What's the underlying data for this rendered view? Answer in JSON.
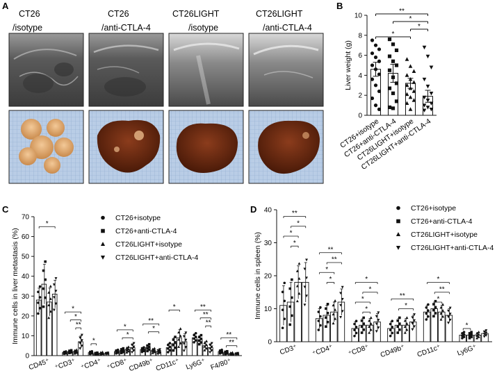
{
  "figure": {
    "panel_labels": [
      "A",
      "B",
      "C",
      "D"
    ],
    "groups": [
      {
        "line1": "CT26",
        "line2": "/isotype"
      },
      {
        "line1": "CT26",
        "line2": "/anti-CTLA-4"
      },
      {
        "line1": "CT26LIGHT",
        "line2": "/isotype"
      },
      {
        "line1": "CT26LIGHT",
        "line2": "/anti-CTLA-4"
      }
    ],
    "legend": [
      "CT26+isotype",
      "CT26+anti-CTLA-4",
      "CT26LIGHT+isotype",
      "CT26LIGHT+anti-CTLA-4"
    ],
    "colors": {
      "ink": "#111111",
      "ultrasound_bg": "#5a5a5a",
      "tissue_bg": "#b9cde6",
      "tumor_tissue": "#e0a868",
      "liver_tissue": "#6a2a12"
    }
  },
  "chart_data": [
    {
      "panel": "B",
      "type": "bar",
      "ylabel": "Liver weight (g)",
      "yticks": [
        0,
        2,
        4,
        6,
        8,
        10
      ],
      "ylim": [
        0,
        10
      ],
      "categories": [
        "CT26+isotype",
        "CT26+anti-CTLA-4",
        "CT26LIGHT+isotype",
        "CT26LIGHT+anti-CTLA-4"
      ],
      "values": [
        4.6,
        4.2,
        3.2,
        1.9
      ],
      "errors": [
        0.7,
        0.9,
        0.5,
        0.6
      ],
      "points": [
        [
          7.5,
          7.0,
          6.6,
          6.2,
          5.8,
          5.4,
          5.0,
          4.6,
          4.1,
          3.6,
          3.0,
          2.4,
          1.7,
          1.0,
          0.6
        ],
        [
          7.6,
          7.1,
          6.5,
          5.9,
          5.4,
          5.0,
          4.5,
          3.8,
          3.2,
          2.7,
          2.2,
          1.4,
          0.8,
          0.7
        ],
        [
          5.6,
          4.9,
          4.4,
          4.0,
          3.6,
          3.3,
          3.0,
          2.7,
          2.4,
          2.1,
          1.8,
          1.5,
          1.2,
          0.6
        ],
        [
          6.8,
          5.9,
          4.8,
          3.6,
          2.9,
          2.2,
          1.8,
          1.5,
          1.2,
          1.0,
          0.8,
          0.6,
          0.5
        ]
      ],
      "significance": [
        {
          "from": 0,
          "to": 3,
          "label": "**"
        },
        {
          "from": 1,
          "to": 3,
          "label": "*"
        },
        {
          "from": 2,
          "to": 3,
          "label": "*"
        },
        {
          "from": 0,
          "to": 2,
          "label": "*"
        }
      ]
    },
    {
      "panel": "C",
      "type": "bar",
      "ylabel": "Immune cells in liver metastasis (%)",
      "yticks": [
        0,
        10,
        20,
        30,
        40,
        50,
        60,
        70
      ],
      "ylim": [
        0,
        70
      ],
      "categories": [
        "CD45⁺",
        "⁺CD3⁺",
        "⁺CD4⁺",
        "⁺CD8⁺",
        "CD49b⁺",
        "CD11c⁺",
        "Ly6G⁺",
        "F4/80⁺"
      ],
      "series": [
        {
          "name": "CT26+isotype",
          "values": [
            28,
            1.5,
            1.5,
            2,
            3,
            4,
            9,
            2
          ],
          "errors": [
            6,
            0.5,
            0.6,
            0.8,
            1,
            2,
            2,
            0.8
          ]
        },
        {
          "name": "CT26+anti-CTLA-4",
          "values": [
            36,
            2,
            1,
            2.5,
            4,
            6,
            8,
            1.5
          ],
          "errors": [
            10,
            0.6,
            0.4,
            1,
            1.5,
            3,
            2,
            0.6
          ]
        },
        {
          "name": "CT26LIGHT+isotype",
          "values": [
            27,
            2,
            1.2,
            3,
            2.5,
            9,
            5,
            1
          ],
          "errors": [
            7,
            0.8,
            0.5,
            1.2,
            1,
            4,
            2,
            0.5
          ]
        },
        {
          "name": "CT26LIGHT+anti-CTLA-4",
          "values": [
            31,
            7,
            1,
            4,
            2,
            7,
            4,
            0.8
          ],
          "errors": [
            7,
            3,
            0.4,
            2,
            1,
            4,
            2,
            0.4
          ]
        }
      ],
      "significance": [
        {
          "cat": 0,
          "from": 0,
          "to": 3,
          "label": "*",
          "y": 65
        },
        {
          "cat": 1,
          "from": 0,
          "to": 3,
          "label": "*",
          "y": 22
        },
        {
          "cat": 1,
          "from": 1,
          "to": 3,
          "label": "*",
          "y": 18
        },
        {
          "cat": 1,
          "from": 2,
          "to": 3,
          "label": "**",
          "y": 14
        },
        {
          "cat": 2,
          "from": 0,
          "to": 1,
          "label": "*",
          "y": 6
        },
        {
          "cat": 3,
          "from": 0,
          "to": 3,
          "label": "*",
          "y": 13
        },
        {
          "cat": 3,
          "from": 1,
          "to": 3,
          "label": "*",
          "y": 9
        },
        {
          "cat": 4,
          "from": 0,
          "to": 3,
          "label": "**",
          "y": 16
        },
        {
          "cat": 4,
          "from": 1,
          "to": 3,
          "label": "*",
          "y": 12
        },
        {
          "cat": 5,
          "from": 0,
          "to": 2,
          "label": "*",
          "y": 23
        },
        {
          "cat": 6,
          "from": 0,
          "to": 3,
          "label": "**",
          "y": 23
        },
        {
          "cat": 6,
          "from": 1,
          "to": 3,
          "label": "**",
          "y": 19
        },
        {
          "cat": 6,
          "from": 2,
          "to": 3,
          "label": "**",
          "y": 15
        },
        {
          "cat": 7,
          "from": 0,
          "to": 3,
          "label": "**",
          "y": 9
        },
        {
          "cat": 7,
          "from": 1,
          "to": 3,
          "label": "**",
          "y": 5
        }
      ]
    },
    {
      "panel": "D",
      "type": "bar",
      "ylabel": "Immune cells in spleen (%)",
      "yticks": [
        0,
        10,
        20,
        30,
        40
      ],
      "ylim": [
        0,
        40
      ],
      "categories": [
        "CD3⁺",
        "⁺CD4⁺",
        "⁺CD8⁺",
        "CD49b⁺",
        "CD11c⁺",
        "Ly6G⁺"
      ],
      "series": [
        {
          "name": "CT26+isotype",
          "values": [
            11,
            7,
            4,
            4,
            9,
            2
          ],
          "errors": [
            6,
            3,
            2,
            2,
            2,
            0.8
          ]
        },
        {
          "name": "CT26+anti-CTLA-4",
          "values": [
            12,
            8,
            5,
            5,
            10,
            2
          ],
          "errors": [
            6,
            3,
            2,
            2,
            2,
            0.8
          ]
        },
        {
          "name": "CT26LIGHT+isotype",
          "values": [
            18,
            9,
            5,
            5,
            9,
            2
          ],
          "errors": [
            5,
            3,
            2,
            2,
            2,
            0.8
          ]
        },
        {
          "name": "CT26LIGHT+anti-CTLA-4",
          "values": [
            18,
            12,
            6,
            6,
            8,
            2.5
          ],
          "errors": [
            6,
            4,
            2.5,
            2,
            2,
            0.8
          ]
        }
      ],
      "significance": [
        {
          "cat": 0,
          "from": 0,
          "to": 3,
          "label": "**",
          "y": 38
        },
        {
          "cat": 0,
          "from": 1,
          "to": 3,
          "label": "*",
          "y": 35
        },
        {
          "cat": 0,
          "from": 0,
          "to": 2,
          "label": "*",
          "y": 32
        },
        {
          "cat": 0,
          "from": 1,
          "to": 2,
          "label": "*",
          "y": 29
        },
        {
          "cat": 1,
          "from": 0,
          "to": 3,
          "label": "**",
          "y": 27
        },
        {
          "cat": 1,
          "from": 1,
          "to": 3,
          "label": "**",
          "y": 24
        },
        {
          "cat": 1,
          "from": 0,
          "to": 2,
          "label": "*",
          "y": 21
        },
        {
          "cat": 1,
          "from": 1,
          "to": 2,
          "label": "*",
          "y": 18
        },
        {
          "cat": 2,
          "from": 0,
          "to": 3,
          "label": "*",
          "y": 18
        },
        {
          "cat": 2,
          "from": 1,
          "to": 3,
          "label": "*",
          "y": 15
        },
        {
          "cat": 2,
          "from": 0,
          "to": 2,
          "label": "*",
          "y": 12
        },
        {
          "cat": 2,
          "from": 1,
          "to": 2,
          "label": "*",
          "y": 9
        },
        {
          "cat": 3,
          "from": 0,
          "to": 3,
          "label": "**",
          "y": 13
        },
        {
          "cat": 3,
          "from": 1,
          "to": 3,
          "label": "*",
          "y": 10
        },
        {
          "cat": 4,
          "from": 0,
          "to": 3,
          "label": "*",
          "y": 18
        },
        {
          "cat": 4,
          "from": 1,
          "to": 3,
          "label": "**",
          "y": 15
        },
        {
          "cat": 4,
          "from": 1,
          "to": 2,
          "label": "*",
          "y": 12
        },
        {
          "cat": 5,
          "from": 0,
          "to": 1,
          "label": "*",
          "y": 4
        }
      ]
    }
  ]
}
